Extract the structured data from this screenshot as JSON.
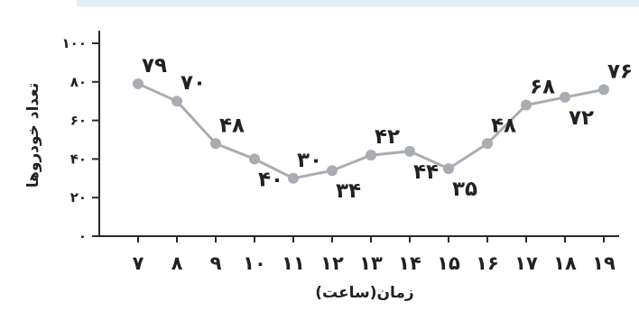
{
  "chart_data": {
    "type": "line",
    "title": "",
    "xlabel": "زمان(ساعت)",
    "ylabel": "تعداد خودروها",
    "ylim": [
      0,
      100
    ],
    "yticks": [
      "۰",
      "۲۰",
      "۴۰",
      "۶۰",
      "۸۰",
      "۱۰۰"
    ],
    "x": [
      7,
      8,
      9,
      10,
      11,
      12,
      13,
      14,
      15,
      16,
      17,
      18,
      19
    ],
    "xtick_labels": [
      "۷",
      "۸",
      "۹",
      "۱۰",
      "۱۱",
      "۱۲",
      "۱۳",
      "۱۴",
      "۱۵",
      "۱۶",
      "۱۷",
      "۱۸",
      "۱۹"
    ],
    "series": [
      {
        "values": [
          79,
          70,
          48,
          40,
          30,
          34,
          42,
          44,
          35,
          48,
          68,
          72,
          76
        ],
        "value_labels": [
          "۷۹",
          "۷۰",
          "۴۸",
          "۴۰",
          "۳۰",
          "۳۴",
          "۴۲",
          "۴۴",
          "۳۵",
          "۴۸",
          "۶۸",
          "۷۲",
          "۷۶"
        ],
        "label_positions": [
          "above",
          "above",
          "above",
          "below",
          "above",
          "below",
          "above",
          "below",
          "below",
          "above",
          "above",
          "below",
          "above"
        ]
      }
    ],
    "grid": false,
    "line_color": "#a9adb1",
    "marker_color": "#a9adb1"
  }
}
